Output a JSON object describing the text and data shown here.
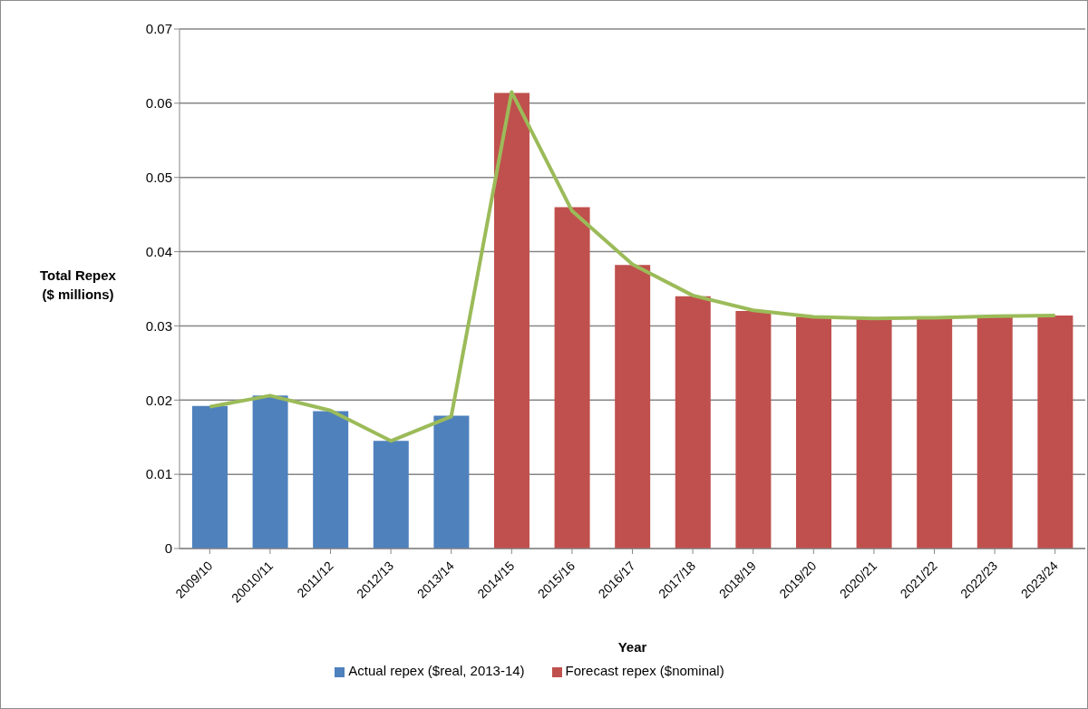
{
  "chart_data": {
    "type": "bar",
    "xlabel": "Year",
    "ylabel": "Total Repex ($ millions)",
    "categories": [
      "2009/10",
      "20010/11",
      "2011/12",
      "2012/13",
      "2013/14",
      "2014/15",
      "2015/16",
      "2016/17",
      "2017/18",
      "2018/19",
      "2019/20",
      "2020/21",
      "2021/22",
      "2022/23",
      "2023/24"
    ],
    "series": [
      {
        "name": "Actual repex ($real, 2013-14)",
        "color": "#4f81bd",
        "values": [
          0.0192,
          0.0206,
          0.0185,
          0.0145,
          0.0179,
          null,
          null,
          null,
          null,
          null,
          null,
          null,
          null,
          null,
          null
        ]
      },
      {
        "name": "Forecast repex ($nominal)",
        "color": "#c0504d",
        "values": [
          null,
          null,
          null,
          null,
          null,
          0.0614,
          0.046,
          0.0382,
          0.034,
          0.032,
          0.0312,
          0.031,
          0.0311,
          0.0313,
          0.0314
        ]
      },
      {
        "type": "line",
        "color": "#9bbb59",
        "values": [
          0.0191,
          0.0206,
          0.0186,
          0.0145,
          0.0178,
          0.0615,
          0.0455,
          0.0383,
          0.0341,
          0.0321,
          0.0312,
          0.031,
          0.0311,
          0.0313,
          0.0314
        ]
      }
    ],
    "stacked": true,
    "ylim": [
      0,
      0.07
    ],
    "yticks": [
      0,
      0.01,
      0.02,
      0.03,
      0.04,
      0.05,
      0.06,
      0.07
    ],
    "grid": "y",
    "legend": "bottom",
    "marker": "none"
  }
}
